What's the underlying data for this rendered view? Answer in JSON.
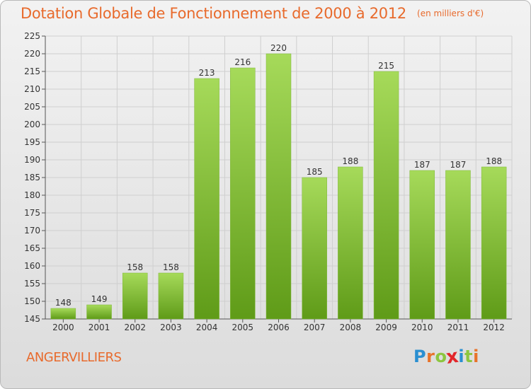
{
  "header": {
    "title": "Dotation Globale de Fonctionnement de 2000 à 2012",
    "subtitle": "(en milliers d'€)"
  },
  "footer": {
    "commune": "ANGERVILLIERS",
    "logo_letters": [
      "P",
      "r",
      "o",
      "x",
      "i",
      "t",
      "i"
    ],
    "logo_colors": [
      "#2a8fd1",
      "#e8732a",
      "#8cc63f",
      "#e2262a",
      "#2a8fd1",
      "#8cc63f",
      "#e8732a"
    ]
  },
  "colors": {
    "title": "#e86a2c",
    "bar_top": "#a6da5a",
    "bar_bottom": "#5f9b18",
    "axis_text": "#333333",
    "grid": "#cfcfcf"
  },
  "chart_data": {
    "type": "bar",
    "categories": [
      "2000",
      "2001",
      "2002",
      "2003",
      "2004",
      "2005",
      "2006",
      "2007",
      "2008",
      "2009",
      "2010",
      "2011",
      "2012"
    ],
    "values": [
      148,
      149,
      158,
      158,
      213,
      216,
      220,
      185,
      188,
      215,
      187,
      187,
      188
    ],
    "ylim": [
      145,
      225
    ],
    "yticks": [
      145,
      150,
      155,
      160,
      165,
      170,
      175,
      180,
      185,
      190,
      195,
      200,
      205,
      210,
      215,
      220,
      225
    ],
    "grid": true,
    "data_labels": true
  }
}
